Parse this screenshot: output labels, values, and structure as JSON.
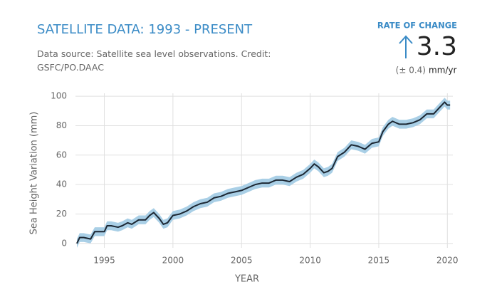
{
  "chart_data": {
    "type": "line",
    "title": "SATELLITE DATA: 1993 - PRESENT",
    "subtitle": "Data source: Satellite sea level observations. Credit: GSFC/PO.DAAC",
    "rate_heading": "RATE OF CHANGE",
    "rate": 3.3,
    "rate_uncertainty": "(± 0.4)",
    "rate_unit": "mm/yr",
    "x_label": "YEAR",
    "y_label": "Sea Height Variation (mm)",
    "x": [
      1993.0,
      1993.2,
      1993.5,
      1994.0,
      1994.3,
      1994.6,
      1995.0,
      1995.2,
      1995.5,
      1996.0,
      1996.3,
      1996.7,
      1997.0,
      1997.5,
      1998.0,
      1998.3,
      1998.6,
      1999.0,
      1999.3,
      1999.6,
      2000.0,
      2000.5,
      2001.0,
      2001.5,
      2002.0,
      2002.5,
      2003.0,
      2003.5,
      2004.0,
      2004.5,
      2005.0,
      2005.5,
      2006.0,
      2006.5,
      2007.0,
      2007.5,
      2008.0,
      2008.5,
      2009.0,
      2009.5,
      2010.0,
      2010.3,
      2010.6,
      2011.0,
      2011.3,
      2011.6,
      2012.0,
      2012.5,
      2013.0,
      2013.5,
      2014.0,
      2014.5,
      2015.0,
      2015.3,
      2015.7,
      2016.0,
      2016.5,
      2017.0,
      2017.5,
      2018.0,
      2018.5,
      2019.0,
      2019.5,
      2019.8,
      2020.0,
      2020.2
    ],
    "series": [
      {
        "color": "#1c2733",
        "band_color": "#a9cfe6",
        "values": [
          0,
          4,
          4,
          3,
          8,
          8,
          8,
          12,
          12,
          11,
          12,
          14,
          13,
          16,
          16,
          19,
          21,
          17,
          13,
          14,
          19,
          20,
          22,
          25,
          27,
          28,
          31,
          32,
          34,
          35,
          36,
          38,
          40,
          41,
          41,
          43,
          43,
          42,
          45,
          47,
          51,
          54,
          52,
          48,
          49,
          51,
          59,
          62,
          67,
          66,
          64,
          68,
          69,
          76,
          81,
          83,
          81,
          81,
          82,
          84,
          88,
          88,
          93,
          96,
          94,
          94
        ],
        "errors": [
          3,
          3,
          3,
          3,
          3,
          3,
          3,
          3,
          3,
          3,
          3,
          3,
          3,
          3,
          3,
          3,
          3,
          3,
          3,
          3,
          3,
          3,
          3,
          3,
          3,
          3,
          3,
          3,
          3,
          3,
          3,
          3,
          3,
          3,
          3,
          3,
          3,
          3,
          3,
          3,
          3,
          3,
          3,
          3,
          3,
          3,
          3,
          3,
          3,
          3,
          3,
          3,
          3,
          3,
          3,
          3,
          3,
          3,
          3,
          3,
          3,
          3,
          3,
          3,
          3,
          3
        ]
      }
    ],
    "xlim": [
      1993.0,
      2020.4
    ],
    "ylim": [
      -3,
      102
    ],
    "xticks": [
      1995,
      2000,
      2005,
      2010,
      2015,
      2020
    ],
    "yticks": [
      0,
      20,
      40,
      60,
      80,
      100
    ],
    "grid": true
  }
}
